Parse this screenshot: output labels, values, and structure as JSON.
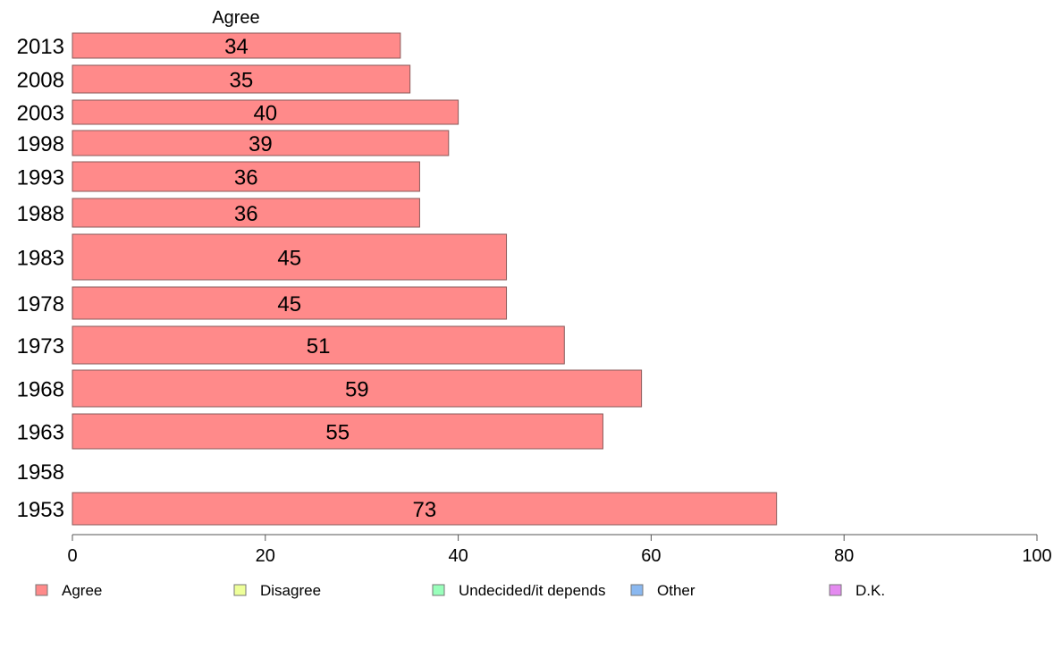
{
  "chart_data": {
    "type": "bar",
    "orientation": "horizontal",
    "header": "Agree",
    "categories": [
      "2013",
      "2008",
      "2003",
      "1998",
      "1993",
      "1988",
      "1983",
      "1978",
      "1973",
      "1968",
      "1963",
      "1958",
      "1953"
    ],
    "series": [
      {
        "name": "Agree",
        "values": [
          34,
          35,
          40,
          39,
          36,
          36,
          45,
          45,
          51,
          59,
          55,
          null,
          73
        ]
      }
    ],
    "xlim": [
      0,
      100
    ],
    "xticks": [
      "0",
      "20",
      "40",
      "60",
      "80",
      "100"
    ],
    "grid": false,
    "legend_position": "bottom",
    "legend": [
      "Agree",
      "Disagree",
      "Undecided/it depends",
      "Other",
      "D.K."
    ],
    "colors": {
      "Agree": "#ff8a8a",
      "Disagree": "#eeff99",
      "Undecided/it depends": "#99ffbb",
      "Other": "#8ab8f0",
      "D.K.": "#e48af0"
    }
  }
}
